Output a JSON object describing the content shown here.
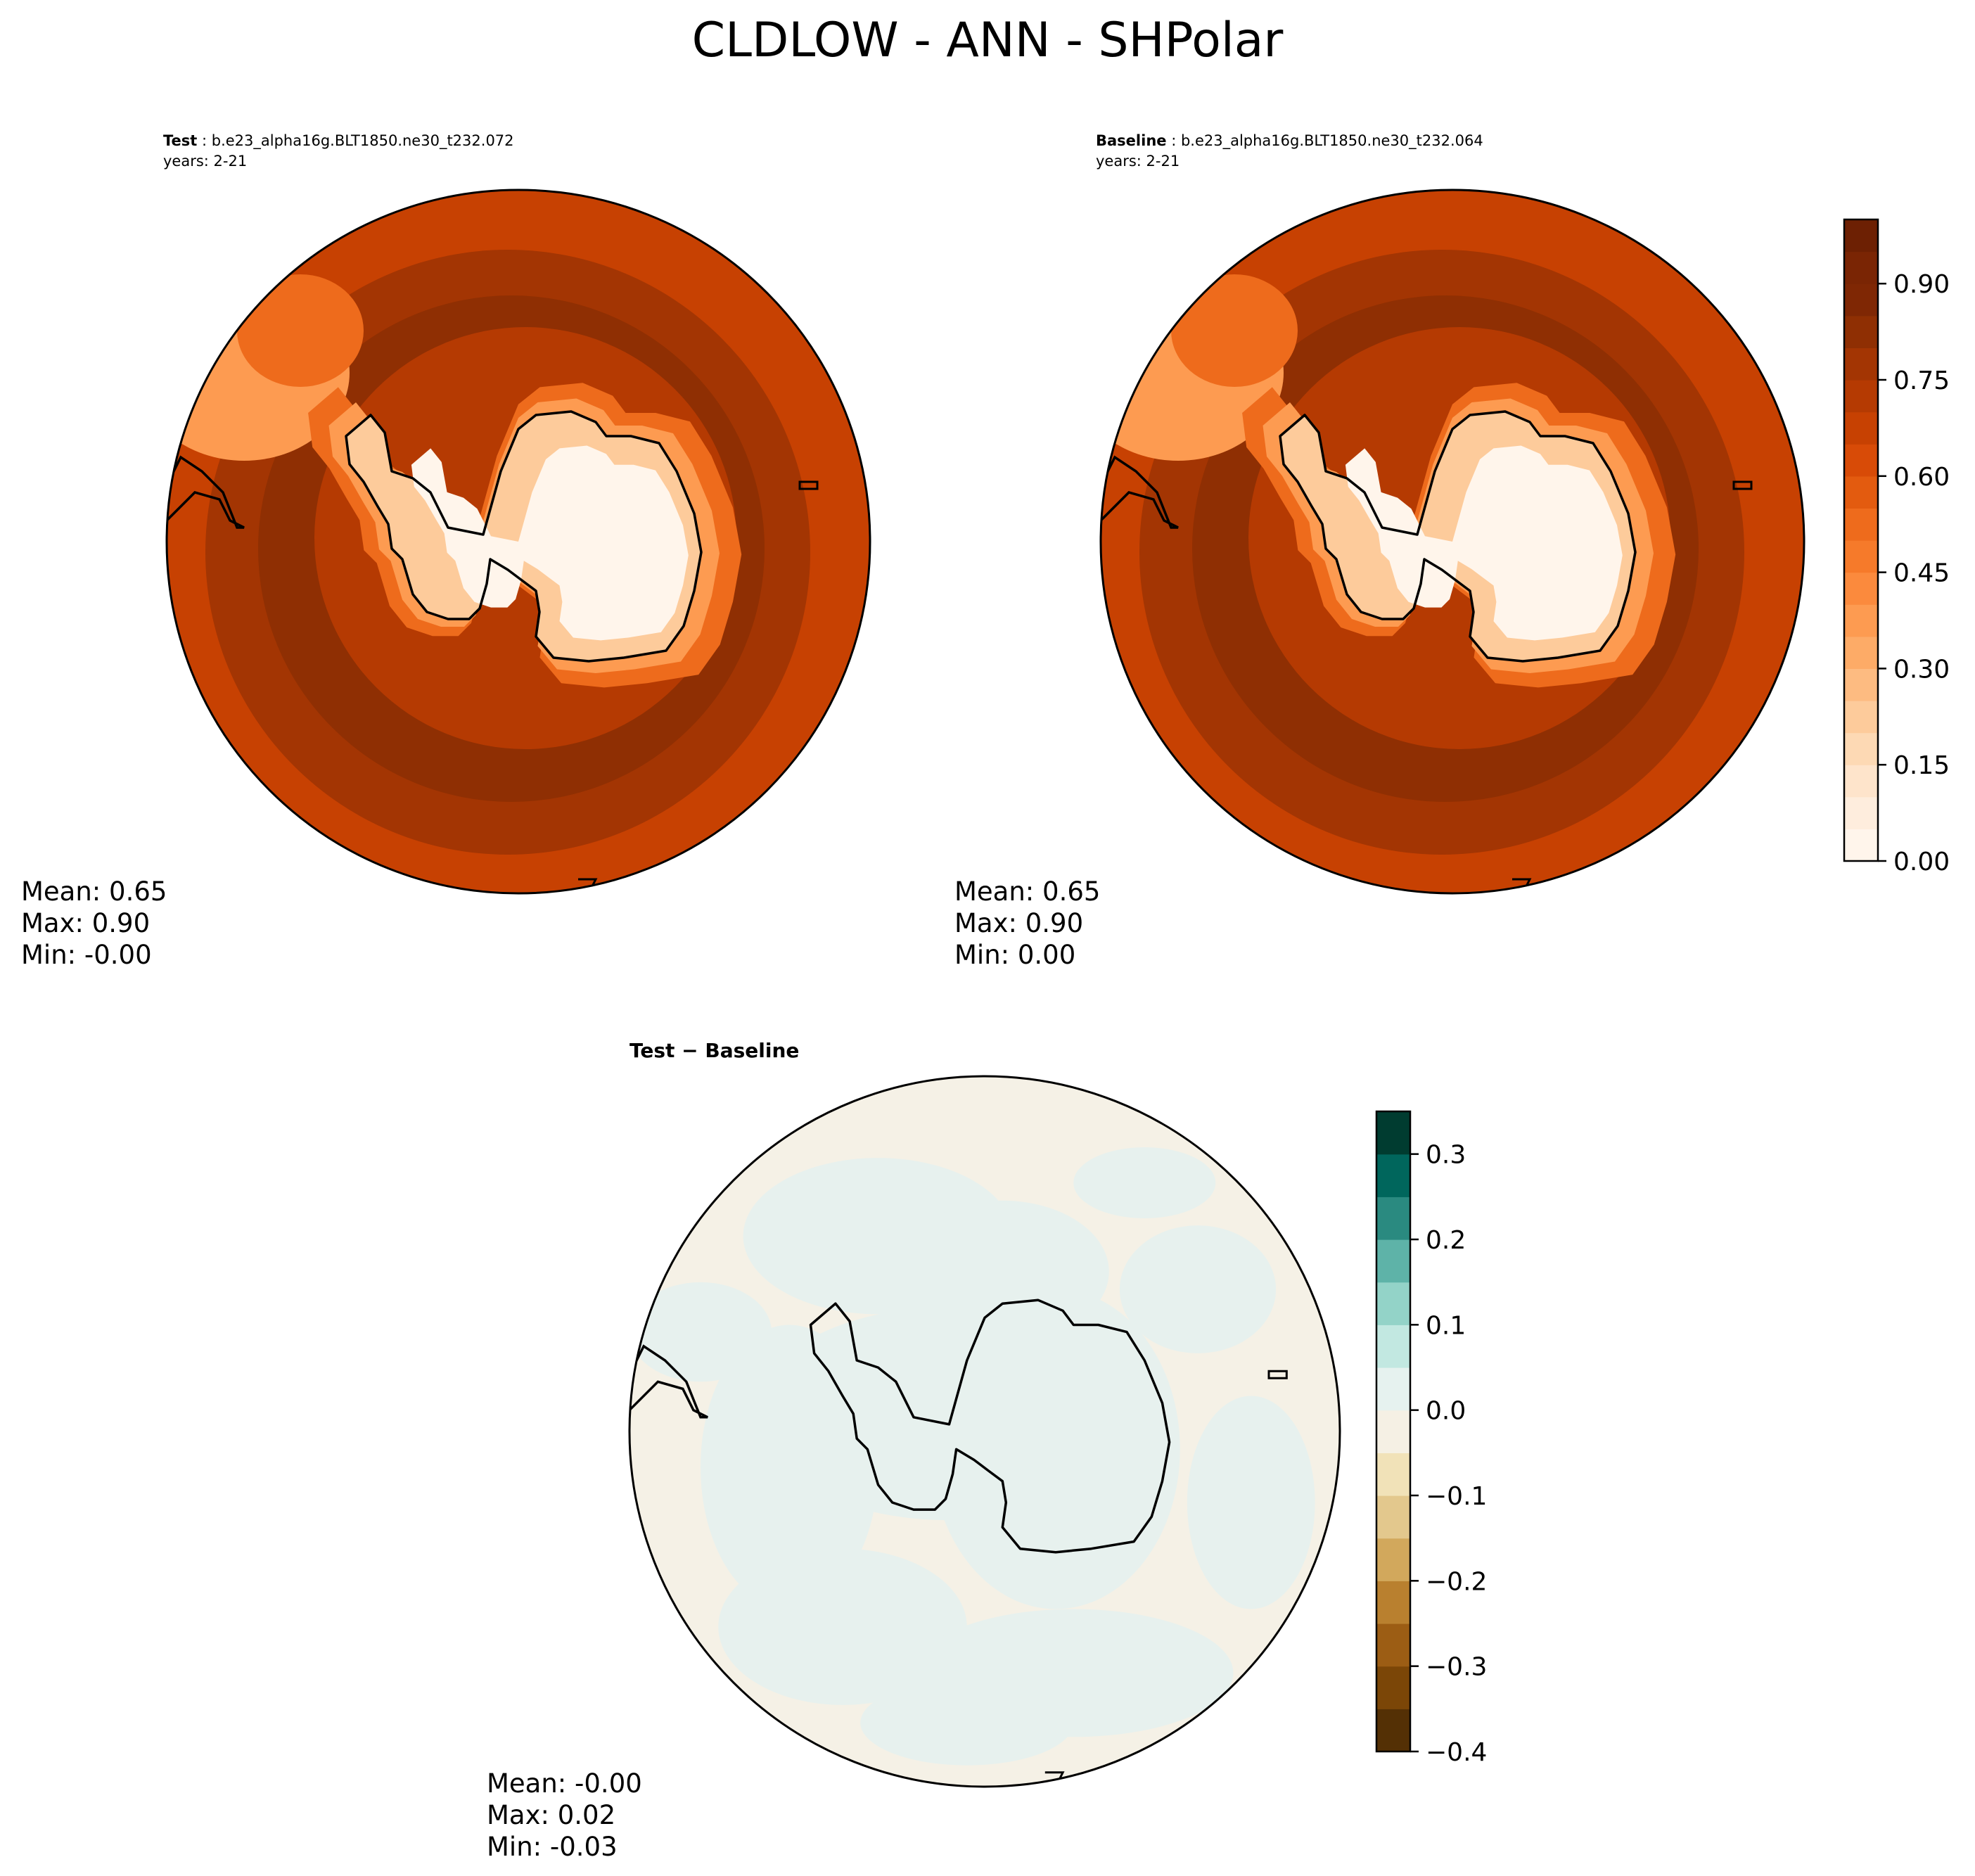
{
  "figure": {
    "title": "CLDLOW - ANN - SHPolar"
  },
  "panels": [
    {
      "id": "test",
      "label_bold": "Test",
      "label_rest": " : b.e23_alpha16g.BLT1850.ne30_t232.072",
      "years": "years: 2-21",
      "stats": {
        "mean": "Mean:  0.65",
        "max": "Max:  0.90",
        "min": "Min: -0.00"
      }
    },
    {
      "id": "baseline",
      "label_bold": "Baseline",
      "label_rest": " : b.e23_alpha16g.BLT1850.ne30_t232.064",
      "years": "years: 2-21",
      "stats": {
        "mean": "Mean:  0.65",
        "max": "Max:  0.90",
        "min": "Min:  0.00"
      }
    },
    {
      "id": "diff",
      "label_bold": "Test − Baseline",
      "stats": {
        "mean": "Mean: -0.00",
        "max": "Max:  0.02",
        "min": "Min: -0.03"
      }
    }
  ],
  "chart_data": [
    {
      "type": "heatmap",
      "name": "Test",
      "projection": "south-polar-stereographic",
      "colormap": "Oranges",
      "levels": [
        0.0,
        0.05,
        0.1,
        0.15,
        0.2,
        0.25,
        0.3,
        0.35,
        0.4,
        0.45,
        0.5,
        0.55,
        0.6,
        0.65,
        0.7,
        0.75,
        0.8,
        0.85,
        0.9,
        0.95,
        1.0
      ],
      "colorbar_ticks": [
        "0.00",
        "0.15",
        "0.30",
        "0.45",
        "0.60",
        "0.75",
        "0.90"
      ],
      "mean": 0.65,
      "max": 0.9,
      "min": -0.0,
      "fields": {
        "ocean_60S": 0.88,
        "ocean_45S": 0.78,
        "ocean_30S": 0.7,
        "peninsula": 0.45,
        "ice_sheet": 0.02
      }
    },
    {
      "type": "heatmap",
      "name": "Baseline",
      "projection": "south-polar-stereographic",
      "colormap": "Oranges",
      "levels": [
        0.0,
        0.05,
        0.1,
        0.15,
        0.2,
        0.25,
        0.3,
        0.35,
        0.4,
        0.45,
        0.5,
        0.55,
        0.6,
        0.65,
        0.7,
        0.75,
        0.8,
        0.85,
        0.9,
        0.95,
        1.0
      ],
      "colorbar_ticks": [
        "0.00",
        "0.15",
        "0.30",
        "0.45",
        "0.60",
        "0.75",
        "0.90"
      ],
      "mean": 0.65,
      "max": 0.9,
      "min": 0.0,
      "fields": {
        "ocean_60S": 0.88,
        "ocean_45S": 0.78,
        "ocean_30S": 0.7,
        "peninsula": 0.45,
        "ice_sheet": 0.05
      }
    },
    {
      "type": "heatmap",
      "name": "Test − Baseline",
      "projection": "south-polar-stereographic",
      "colormap": "BrBG",
      "levels": [
        -0.4,
        -0.35,
        -0.3,
        -0.25,
        -0.2,
        -0.15,
        -0.1,
        -0.05,
        0.0,
        0.05,
        0.1,
        0.15,
        0.2,
        0.25,
        0.3,
        0.35
      ],
      "colorbar_ticks": [
        "0.3",
        "0.2",
        "0.1",
        "0.0",
        "−0.1",
        "−0.2",
        "−0.3",
        "−0.4"
      ],
      "mean": -0.0,
      "max": 0.02,
      "min": -0.03,
      "fields": {
        "mostly": 0.0,
        "pattern": "patches slightly below and slightly above zero"
      }
    }
  ],
  "colors": {
    "oranges": [
      "#fff5eb",
      "#feeddd",
      "#fee4cb",
      "#fdd9b4",
      "#fdcb9b",
      "#fdbb81",
      "#fdab67",
      "#fd9b51",
      "#fb8a3d",
      "#f67a2a",
      "#ee6b1c",
      "#e35b0f",
      "#d84b07",
      "#c74102",
      "#b53a02",
      "#a33503",
      "#8f2f03",
      "#7f2704"
    ],
    "brbg": [
      "#543005",
      "#7b4607",
      "#9c5d14",
      "#b9802f",
      "#d2a85c",
      "#e3c88d",
      "#f1e2b8",
      "#f5f0e4",
      "#e6f2ef",
      "#c2e8e1",
      "#93d3c8",
      "#5eb3a8",
      "#2a8a80",
      "#00665c",
      "#003c30"
    ]
  }
}
